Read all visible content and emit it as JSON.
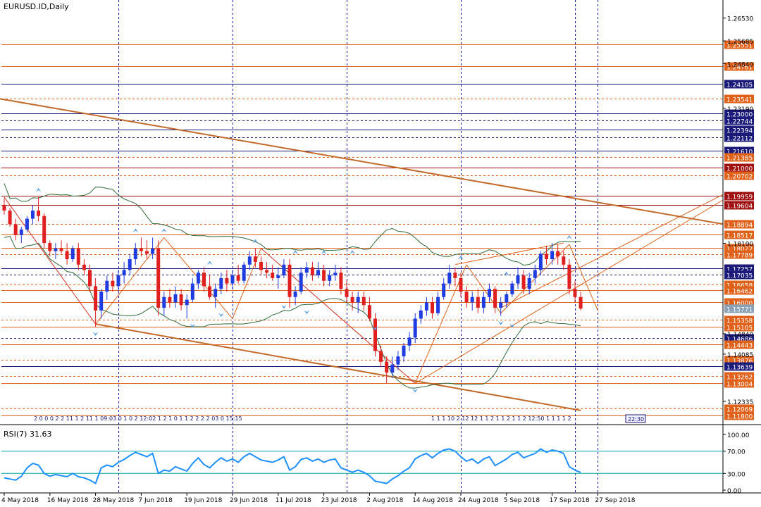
{
  "window": {
    "title": "EURUSD.ID,Daily"
  },
  "rsi": {
    "label": "RSI(7) 31.63",
    "levels": [
      100.0,
      70.0,
      30.0,
      0.0
    ],
    "level_labels": [
      "100.00",
      "70.00",
      "30.00",
      "0.00"
    ]
  },
  "colors": {
    "up": "#1f3ce0",
    "down": "#e01f1f",
    "grid": "#1a1aa8",
    "orange": "#e0621a",
    "brown": "#c26a2a",
    "navy": "#1a1a7a",
    "green": "#2e6b3a",
    "rsi_line": "#1e90ff",
    "rsi_level": "#00a2a2"
  },
  "price_axis": {
    "min": 1.115,
    "max": 1.272,
    "plain_ticks": [
      "1.26530",
      "1.25685",
      "1.24840",
      "1.23190",
      "1.18190",
      "1.14840",
      "1.14085",
      "1.12335"
    ],
    "levels": [
      {
        "value": 1.25551,
        "label": "1.25551",
        "color": "#e0621a",
        "style": "solid"
      },
      {
        "value": 1.24761,
        "label": "1.24761",
        "color": "#e0621a",
        "style": "solid"
      },
      {
        "value": 1.24105,
        "label": "1.24105",
        "color": "#1a1a7a",
        "style": "solid"
      },
      {
        "value": 1.23541,
        "label": "1.23541",
        "color": "#e0621a",
        "style": "dash"
      },
      {
        "value": 1.23,
        "label": "1.23000",
        "color": "#1a1a7a",
        "style": "solid"
      },
      {
        "value": 1.22744,
        "label": "1.22744",
        "color": "#1a1a7a",
        "style": "dash"
      },
      {
        "value": 1.22394,
        "label": "1.22394",
        "color": "#1a1a7a",
        "style": "solid"
      },
      {
        "value": 1.22112,
        "label": "1.22112",
        "color": "#1a1a7a",
        "style": "dash"
      },
      {
        "value": 1.2161,
        "label": "1.21610",
        "color": "#1a1a7a",
        "style": "solid"
      },
      {
        "value": 1.21385,
        "label": "1.21385",
        "color": "#e0621a",
        "style": "dash"
      },
      {
        "value": 1.21,
        "label": "1.21000",
        "color": "#a01010",
        "style": "solid"
      },
      {
        "value": 1.20702,
        "label": "1.20702",
        "color": "#e0621a",
        "style": "dash"
      },
      {
        "value": 1.19959,
        "label": "1.19959",
        "color": "#a01010",
        "style": "solid"
      },
      {
        "value": 1.19604,
        "label": "1.19604",
        "color": "#a01010",
        "style": "solid"
      },
      {
        "value": 1.18894,
        "label": "1.18894",
        "color": "#e0621a",
        "style": "dash"
      },
      {
        "value": 1.18517,
        "label": "1.18517",
        "color": "#e0621a",
        "style": "solid"
      },
      {
        "value": 1.18022,
        "label": "1.18022",
        "color": "#e0621a",
        "style": "solid"
      },
      {
        "value": 1.17789,
        "label": "1.17789",
        "color": "#e0621a",
        "style": "dash"
      },
      {
        "value": 1.17257,
        "label": "1.17257",
        "color": "#1a1a7a",
        "style": "solid"
      },
      {
        "value": 1.17035,
        "label": "1.17035",
        "color": "#1a1a7a",
        "style": "dash"
      },
      {
        "value": 1.16658,
        "label": "1.16658",
        "color": "#e0621a",
        "style": "dash"
      },
      {
        "value": 1.16462,
        "label": "1.16462",
        "color": "#e0621a",
        "style": "solid"
      },
      {
        "value": 1.16,
        "label": "1.16000",
        "color": "#e0621a",
        "style": "solid"
      },
      {
        "value": 1.15771,
        "label": "1.15771",
        "color": "#8aa0b4",
        "style": "none"
      },
      {
        "value": 1.15358,
        "label": "1.15358",
        "color": "#e0621a",
        "style": "dash"
      },
      {
        "value": 1.15105,
        "label": "1.15105",
        "color": "#e0621a",
        "style": "solid"
      },
      {
        "value": 1.14686,
        "label": "1.14686",
        "color": "#1a1a7a",
        "style": "dash"
      },
      {
        "value": 1.14443,
        "label": "1.14443",
        "color": "#e0621a",
        "style": "solid"
      },
      {
        "value": 1.13876,
        "label": "1.13876",
        "color": "#e0621a",
        "style": "dash"
      },
      {
        "value": 1.13639,
        "label": "1.13639",
        "color": "#1a1a7a",
        "style": "solid"
      },
      {
        "value": 1.13262,
        "label": "1.13262",
        "color": "#e0621a",
        "style": "dash"
      },
      {
        "value": 1.13004,
        "label": "1.13004",
        "color": "#e0621a",
        "style": "solid"
      },
      {
        "value": 1.12069,
        "label": "1.12069",
        "color": "#e0621a",
        "style": "dash"
      },
      {
        "value": 1.118,
        "label": "1.11800",
        "color": "#e0621a",
        "style": "solid"
      }
    ]
  },
  "time_axis": {
    "labels": [
      "4 May 2018",
      "16 May 2018",
      "28 May 2018",
      "7 Jun 2018",
      "19 Jun 2018",
      "29 Jun 2018",
      "11 Jul 2018",
      "23 Jul 2018",
      "2 Aug 2018",
      "14 Aug 2018",
      "24 Aug 2018",
      "5 Sep 2018",
      "17 Sep 2018",
      "27 Sep 2018"
    ],
    "label_bars": [
      0,
      8,
      16,
      24,
      32,
      40,
      48,
      56,
      64,
      72,
      80,
      88,
      96,
      104
    ],
    "separator_bars": [
      20,
      40,
      60,
      80,
      100,
      104
    ]
  },
  "chart_data": {
    "type": "candlestick",
    "title": "EURUSD.ID,Daily",
    "ylim": [
      1.115,
      1.272
    ],
    "candles": [
      [
        1.196,
        1.1985,
        1.1925,
        1.194
      ],
      [
        1.194,
        1.195,
        1.188,
        1.189
      ],
      [
        1.189,
        1.191,
        1.183,
        1.185
      ],
      [
        1.185,
        1.188,
        1.182,
        1.187
      ],
      [
        1.187,
        1.192,
        1.186,
        1.191
      ],
      [
        1.191,
        1.196,
        1.189,
        1.194
      ],
      [
        1.194,
        1.199,
        1.19,
        1.192
      ],
      [
        1.192,
        1.193,
        1.18,
        1.182
      ],
      [
        1.182,
        1.183,
        1.177,
        1.179
      ],
      [
        1.179,
        1.182,
        1.176,
        1.18
      ],
      [
        1.18,
        1.183,
        1.178,
        1.179
      ],
      [
        1.179,
        1.182,
        1.174,
        1.176
      ],
      [
        1.176,
        1.181,
        1.175,
        1.18
      ],
      [
        1.18,
        1.182,
        1.172,
        1.174
      ],
      [
        1.174,
        1.176,
        1.17,
        1.172
      ],
      [
        1.172,
        1.174,
        1.164,
        1.166
      ],
      [
        1.166,
        1.169,
        1.151,
        1.157
      ],
      [
        1.157,
        1.165,
        1.154,
        1.164
      ],
      [
        1.164,
        1.17,
        1.161,
        1.168
      ],
      [
        1.168,
        1.171,
        1.164,
        1.166
      ],
      [
        1.166,
        1.172,
        1.164,
        1.17
      ],
      [
        1.17,
        1.175,
        1.167,
        1.172
      ],
      [
        1.172,
        1.178,
        1.17,
        1.176
      ],
      [
        1.176,
        1.182,
        1.174,
        1.18
      ],
      [
        1.18,
        1.184,
        1.177,
        1.179
      ],
      [
        1.179,
        1.183,
        1.176,
        1.178
      ],
      [
        1.178,
        1.184,
        1.176,
        1.18
      ],
      [
        1.18,
        1.183,
        1.155,
        1.158
      ],
      [
        1.158,
        1.164,
        1.155,
        1.162
      ],
      [
        1.162,
        1.165,
        1.158,
        1.16
      ],
      [
        1.16,
        1.166,
        1.158,
        1.163
      ],
      [
        1.163,
        1.165,
        1.157,
        1.159
      ],
      [
        1.159,
        1.163,
        1.154,
        1.161
      ],
      [
        1.161,
        1.169,
        1.16,
        1.167
      ],
      [
        1.167,
        1.172,
        1.165,
        1.171
      ],
      [
        1.171,
        1.173,
        1.164,
        1.166
      ],
      [
        1.166,
        1.17,
        1.161,
        1.162
      ],
      [
        1.162,
        1.167,
        1.158,
        1.165
      ],
      [
        1.165,
        1.171,
        1.163,
        1.169
      ],
      [
        1.169,
        1.172,
        1.164,
        1.167
      ],
      [
        1.167,
        1.172,
        1.165,
        1.17
      ],
      [
        1.17,
        1.174,
        1.167,
        1.168
      ],
      [
        1.168,
        1.175,
        1.167,
        1.174
      ],
      [
        1.174,
        1.179,
        1.172,
        1.177
      ],
      [
        1.177,
        1.18,
        1.173,
        1.175
      ],
      [
        1.175,
        1.177,
        1.17,
        1.172
      ],
      [
        1.172,
        1.175,
        1.169,
        1.171
      ],
      [
        1.171,
        1.174,
        1.168,
        1.169
      ],
      [
        1.169,
        1.173,
        1.165,
        1.17
      ],
      [
        1.17,
        1.176,
        1.169,
        1.174
      ],
      [
        1.174,
        1.176,
        1.158,
        1.162
      ],
      [
        1.162,
        1.166,
        1.159,
        1.164
      ],
      [
        1.164,
        1.173,
        1.163,
        1.171
      ],
      [
        1.171,
        1.175,
        1.169,
        1.173
      ],
      [
        1.173,
        1.175,
        1.168,
        1.17
      ],
      [
        1.17,
        1.175,
        1.169,
        1.172
      ],
      [
        1.172,
        1.174,
        1.166,
        1.168
      ],
      [
        1.168,
        1.172,
        1.166,
        1.17
      ],
      [
        1.17,
        1.174,
        1.168,
        1.171
      ],
      [
        1.171,
        1.173,
        1.163,
        1.165
      ],
      [
        1.165,
        1.168,
        1.16,
        1.162
      ],
      [
        1.162,
        1.164,
        1.157,
        1.16
      ],
      [
        1.16,
        1.164,
        1.156,
        1.162
      ],
      [
        1.162,
        1.164,
        1.157,
        1.159
      ],
      [
        1.159,
        1.162,
        1.153,
        1.154
      ],
      [
        1.154,
        1.156,
        1.14,
        1.142
      ],
      [
        1.142,
        1.144,
        1.136,
        1.138
      ],
      [
        1.138,
        1.14,
        1.13,
        1.134
      ],
      [
        1.134,
        1.14,
        1.132,
        1.137
      ],
      [
        1.137,
        1.142,
        1.135,
        1.14
      ],
      [
        1.14,
        1.145,
        1.138,
        1.144
      ],
      [
        1.144,
        1.149,
        1.142,
        1.147
      ],
      [
        1.147,
        1.156,
        1.145,
        1.154
      ],
      [
        1.154,
        1.159,
        1.152,
        1.157
      ],
      [
        1.157,
        1.162,
        1.155,
        1.16
      ],
      [
        1.16,
        1.162,
        1.154,
        1.156
      ],
      [
        1.156,
        1.164,
        1.155,
        1.162
      ],
      [
        1.162,
        1.169,
        1.161,
        1.167
      ],
      [
        1.167,
        1.174,
        1.165,
        1.171
      ],
      [
        1.171,
        1.173,
        1.166,
        1.169
      ],
      [
        1.169,
        1.171,
        1.162,
        1.164
      ],
      [
        1.164,
        1.166,
        1.158,
        1.16
      ],
      [
        1.16,
        1.164,
        1.157,
        1.162
      ],
      [
        1.162,
        1.165,
        1.156,
        1.158
      ],
      [
        1.158,
        1.164,
        1.156,
        1.162
      ],
      [
        1.162,
        1.167,
        1.16,
        1.165
      ],
      [
        1.165,
        1.166,
        1.156,
        1.158
      ],
      [
        1.158,
        1.162,
        1.155,
        1.16
      ],
      [
        1.16,
        1.164,
        1.158,
        1.163
      ],
      [
        1.163,
        1.168,
        1.162,
        1.167
      ],
      [
        1.167,
        1.173,
        1.165,
        1.17
      ],
      [
        1.17,
        1.172,
        1.163,
        1.165
      ],
      [
        1.165,
        1.171,
        1.163,
        1.169
      ],
      [
        1.169,
        1.174,
        1.167,
        1.172
      ],
      [
        1.172,
        1.179,
        1.17,
        1.178
      ],
      [
        1.178,
        1.181,
        1.174,
        1.176
      ],
      [
        1.176,
        1.182,
        1.174,
        1.179
      ],
      [
        1.179,
        1.1815,
        1.174,
        1.177
      ],
      [
        1.177,
        1.179,
        1.172,
        1.174
      ],
      [
        1.174,
        1.176,
        1.163,
        1.165
      ],
      [
        1.165,
        1.168,
        1.16,
        1.162
      ],
      [
        1.162,
        1.164,
        1.157,
        1.1577
      ]
    ],
    "rsi_values": [
      22,
      20,
      18,
      25,
      40,
      48,
      45,
      30,
      25,
      28,
      26,
      24,
      30,
      24,
      22,
      18,
      12,
      40,
      45,
      42,
      50,
      55,
      62,
      68,
      64,
      60,
      66,
      30,
      36,
      34,
      42,
      38,
      34,
      48,
      58,
      46,
      40,
      50,
      58,
      52,
      56,
      50,
      60,
      66,
      60,
      54,
      52,
      50,
      54,
      60,
      36,
      42,
      55,
      58,
      52,
      56,
      50,
      54,
      56,
      40,
      36,
      32,
      36,
      32,
      26,
      16,
      14,
      12,
      20,
      26,
      34,
      40,
      56,
      62,
      66,
      58,
      66,
      72,
      74,
      70,
      60,
      52,
      56,
      48,
      56,
      60,
      44,
      50,
      56,
      64,
      68,
      58,
      62,
      66,
      74,
      68,
      72,
      70,
      66,
      42,
      36,
      31.63
    ]
  },
  "bottom_bar": {
    "left_tags": "2 0 0 0 2 2 11 1 2 11 1 09:03 0 1 0 2 12:02 1 2 1 0 1 1 2 2 2 2 03 0 15:15",
    "right_tags": "1 1 1 10 2 12 12 1 1 2 1 1 2 1 1 2 12:50 1 1 1 1 2",
    "time_box": "22:30"
  }
}
